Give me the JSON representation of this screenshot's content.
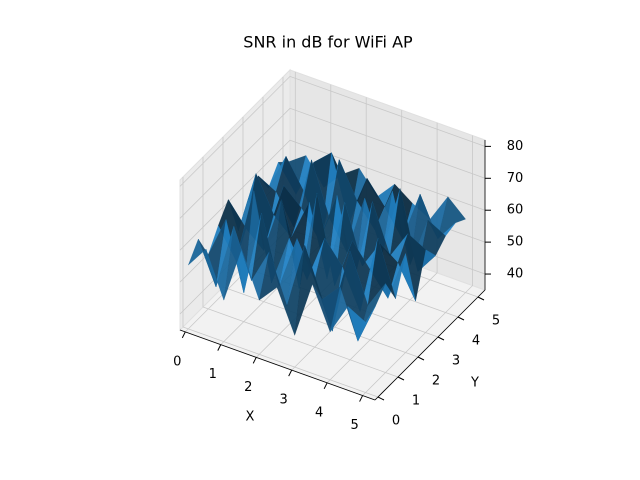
{
  "chart_data": {
    "type": "surface",
    "title": "SNR in dB for WiFi AP",
    "xlabel": "X",
    "ylabel": "Y",
    "color": "#1f77b4",
    "x": [
      0,
      0.5,
      1,
      1.5,
      2,
      2.5,
      3,
      3.5,
      4,
      4.5,
      5
    ],
    "y": [
      0,
      0.5,
      1,
      1.5,
      2,
      2.5,
      3,
      3.5,
      4,
      4.5,
      5
    ],
    "z": [
      [
        55,
        62,
        48,
        66,
        52,
        58,
        45,
        63,
        50,
        60,
        57
      ],
      [
        60,
        47,
        68,
        53,
        64,
        49,
        70,
        55,
        61,
        46,
        59
      ],
      [
        52,
        65,
        44,
        71,
        50,
        67,
        56,
        42,
        69,
        54,
        63
      ],
      [
        58,
        49,
        73,
        46,
        62,
        51,
        66,
        59,
        47,
        72,
        55
      ],
      [
        63,
        56,
        51,
        69,
        43,
        75,
        48,
        64,
        57,
        50,
        66
      ],
      [
        50,
        70,
        59,
        54,
        67,
        45,
        71,
        53,
        62,
        58,
        48
      ],
      [
        57,
        46,
        65,
        60,
        52,
        68,
        44,
        70,
        55,
        64,
        61
      ],
      [
        61,
        58,
        49,
        72,
        56,
        47,
        66,
        51,
        73,
        49,
        56
      ],
      [
        54,
        66,
        57,
        45,
        71,
        60,
        53,
        67,
        46,
        62,
        59
      ],
      [
        59,
        51,
        63,
        68,
        48,
        64,
        57,
        49,
        65,
        53,
        60
      ],
      [
        56,
        60,
        52,
        58,
        62,
        55,
        61,
        57,
        54,
        63,
        58
      ]
    ],
    "xlim": [
      -0.15,
      5.35
    ],
    "ylim": [
      -0.15,
      5.35
    ],
    "zlim": [
      35,
      82
    ],
    "xticks": [
      0,
      1,
      2,
      3,
      4,
      5
    ],
    "yticks": [
      0,
      1,
      2,
      3,
      4,
      5
    ],
    "zticks": [
      40,
      50,
      60,
      70,
      80
    ]
  }
}
